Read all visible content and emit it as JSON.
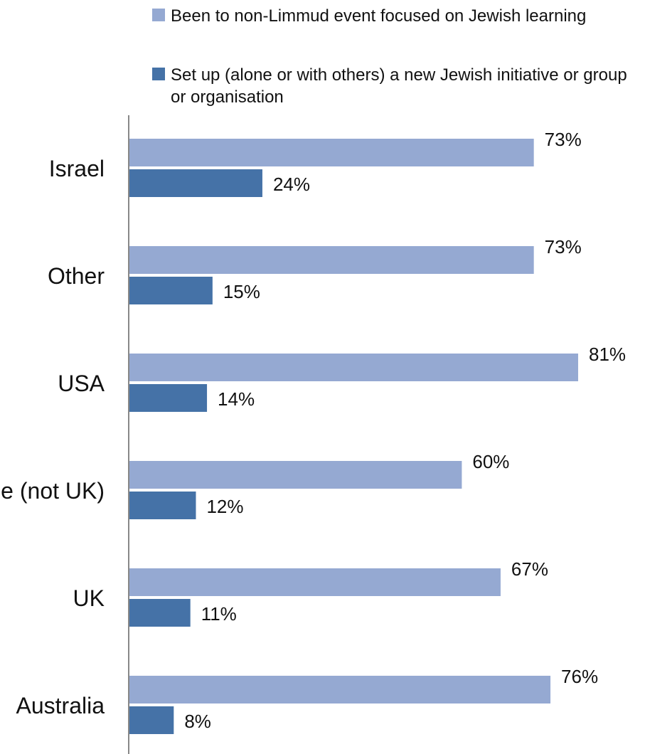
{
  "chart_data": {
    "type": "bar",
    "orientation": "horizontal",
    "categories": [
      "Israel",
      "Other",
      "USA",
      "Europe (not UK)",
      "UK",
      "Australia"
    ],
    "series": [
      {
        "name": "Been to non-Limmud event focused on Jewish learning",
        "color": "#95a9d2",
        "values": [
          73,
          73,
          81,
          60,
          67,
          76
        ],
        "labels": [
          "73%",
          "73%",
          "81%",
          "60%",
          "67%",
          "76%"
        ]
      },
      {
        "name": "Set up (alone or with others) a new Jewish initiative or group or organisation",
        "color": "#4572a7",
        "values": [
          24,
          15,
          14,
          12,
          11,
          8
        ],
        "labels": [
          "24%",
          "15%",
          "14%",
          "12%",
          "11%",
          "8%"
        ]
      }
    ],
    "value_unit": "%",
    "xlim": [
      0,
      100
    ],
    "grid": false,
    "legend_position": "top"
  }
}
